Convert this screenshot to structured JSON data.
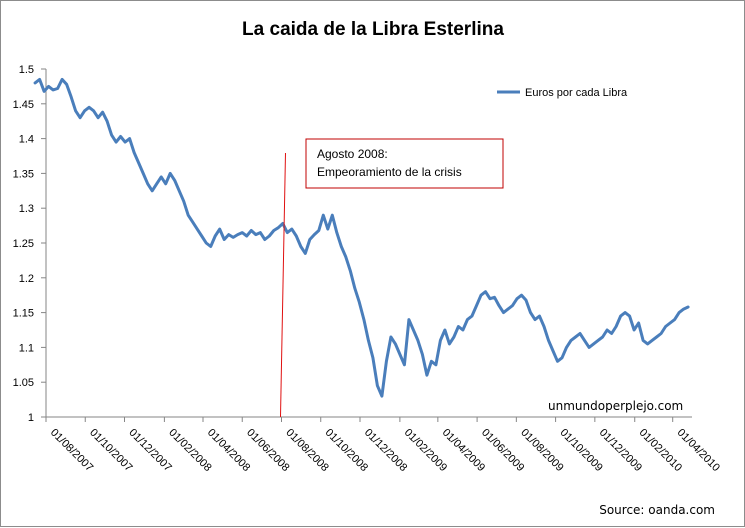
{
  "chart_data": {
    "type": "line",
    "title": "La caida de la Libra Esterlina",
    "xlabel": "",
    "ylabel": "",
    "ylim": [
      1,
      1.5
    ],
    "yticks": [
      "1",
      "1.05",
      "1.1",
      "1.15",
      "1.2",
      "1.25",
      "1.3",
      "1.35",
      "1.4",
      "1.45",
      "1.5"
    ],
    "xticks": [
      "01/08/2007",
      "01/10/2007",
      "01/12/2007",
      "01/02/2008",
      "01/04/2008",
      "01/06/2008",
      "01/08/2008",
      "01/10/2008",
      "01/12/2008",
      "01/02/2009",
      "01/04/2009",
      "01/06/2009",
      "01/08/2009",
      "01/10/2009",
      "01/12/2009",
      "01/02/2010",
      "01/04/2010"
    ],
    "x_date_start": "2007-08-01",
    "x_date_end": "2010-05-01",
    "grid": false,
    "legend_position": "top-right",
    "series": [
      {
        "name": "Euros por cada Libra",
        "color": "#4a7ebb",
        "points": [
          [
            "2007-07-15",
            1.48
          ],
          [
            "2007-07-22",
            1.485
          ],
          [
            "2007-07-29",
            1.468
          ],
          [
            "2007-08-05",
            1.475
          ],
          [
            "2007-08-12",
            1.47
          ],
          [
            "2007-08-19",
            1.472
          ],
          [
            "2007-08-26",
            1.485
          ],
          [
            "2007-09-02",
            1.478
          ],
          [
            "2007-09-09",
            1.46
          ],
          [
            "2007-09-16",
            1.44
          ],
          [
            "2007-09-23",
            1.43
          ],
          [
            "2007-09-30",
            1.44
          ],
          [
            "2007-10-07",
            1.445
          ],
          [
            "2007-10-14",
            1.44
          ],
          [
            "2007-10-21",
            1.43
          ],
          [
            "2007-10-28",
            1.438
          ],
          [
            "2007-11-04",
            1.425
          ],
          [
            "2007-11-11",
            1.405
          ],
          [
            "2007-11-18",
            1.395
          ],
          [
            "2007-11-25",
            1.403
          ],
          [
            "2007-12-02",
            1.395
          ],
          [
            "2007-12-09",
            1.4
          ],
          [
            "2007-12-16",
            1.38
          ],
          [
            "2007-12-23",
            1.365
          ],
          [
            "2007-12-30",
            1.35
          ],
          [
            "2008-01-06",
            1.335
          ],
          [
            "2008-01-13",
            1.325
          ],
          [
            "2008-01-20",
            1.335
          ],
          [
            "2008-01-27",
            1.345
          ],
          [
            "2008-02-03",
            1.335
          ],
          [
            "2008-02-10",
            1.35
          ],
          [
            "2008-02-17",
            1.34
          ],
          [
            "2008-02-24",
            1.325
          ],
          [
            "2008-03-02",
            1.31
          ],
          [
            "2008-03-09",
            1.29
          ],
          [
            "2008-03-16",
            1.28
          ],
          [
            "2008-03-23",
            1.27
          ],
          [
            "2008-03-30",
            1.26
          ],
          [
            "2008-04-06",
            1.25
          ],
          [
            "2008-04-13",
            1.245
          ],
          [
            "2008-04-20",
            1.26
          ],
          [
            "2008-04-27",
            1.27
          ],
          [
            "2008-05-04",
            1.255
          ],
          [
            "2008-05-11",
            1.262
          ],
          [
            "2008-05-18",
            1.258
          ],
          [
            "2008-05-25",
            1.262
          ],
          [
            "2008-06-01",
            1.265
          ],
          [
            "2008-06-08",
            1.26
          ],
          [
            "2008-06-15",
            1.268
          ],
          [
            "2008-06-22",
            1.262
          ],
          [
            "2008-06-29",
            1.265
          ],
          [
            "2008-07-06",
            1.255
          ],
          [
            "2008-07-13",
            1.26
          ],
          [
            "2008-07-20",
            1.268
          ],
          [
            "2008-07-27",
            1.272
          ],
          [
            "2008-08-03",
            1.278
          ],
          [
            "2008-08-10",
            1.265
          ],
          [
            "2008-08-17",
            1.27
          ],
          [
            "2008-08-24",
            1.26
          ],
          [
            "2008-08-31",
            1.245
          ],
          [
            "2008-09-07",
            1.235
          ],
          [
            "2008-09-14",
            1.255
          ],
          [
            "2008-09-21",
            1.262
          ],
          [
            "2008-09-28",
            1.268
          ],
          [
            "2008-10-05",
            1.29
          ],
          [
            "2008-10-12",
            1.27
          ],
          [
            "2008-10-19",
            1.29
          ],
          [
            "2008-10-26",
            1.265
          ],
          [
            "2008-11-02",
            1.245
          ],
          [
            "2008-11-09",
            1.23
          ],
          [
            "2008-11-16",
            1.21
          ],
          [
            "2008-11-23",
            1.185
          ],
          [
            "2008-11-30",
            1.165
          ],
          [
            "2008-12-07",
            1.14
          ],
          [
            "2008-12-14",
            1.11
          ],
          [
            "2008-12-21",
            1.085
          ],
          [
            "2008-12-28",
            1.045
          ],
          [
            "2009-01-04",
            1.03
          ],
          [
            "2009-01-11",
            1.08
          ],
          [
            "2009-01-18",
            1.115
          ],
          [
            "2009-01-25",
            1.105
          ],
          [
            "2009-02-01",
            1.09
          ],
          [
            "2009-02-08",
            1.075
          ],
          [
            "2009-02-15",
            1.14
          ],
          [
            "2009-02-22",
            1.125
          ],
          [
            "2009-03-01",
            1.11
          ],
          [
            "2009-03-08",
            1.09
          ],
          [
            "2009-03-15",
            1.06
          ],
          [
            "2009-03-22",
            1.08
          ],
          [
            "2009-03-29",
            1.075
          ],
          [
            "2009-04-05",
            1.11
          ],
          [
            "2009-04-12",
            1.125
          ],
          [
            "2009-04-19",
            1.105
          ],
          [
            "2009-04-26",
            1.115
          ],
          [
            "2009-05-03",
            1.13
          ],
          [
            "2009-05-10",
            1.125
          ],
          [
            "2009-05-17",
            1.14
          ],
          [
            "2009-05-24",
            1.145
          ],
          [
            "2009-05-31",
            1.16
          ],
          [
            "2009-06-07",
            1.175
          ],
          [
            "2009-06-14",
            1.18
          ],
          [
            "2009-06-21",
            1.17
          ],
          [
            "2009-06-28",
            1.172
          ],
          [
            "2009-07-05",
            1.16
          ],
          [
            "2009-07-12",
            1.15
          ],
          [
            "2009-07-19",
            1.155
          ],
          [
            "2009-07-26",
            1.16
          ],
          [
            "2009-08-02",
            1.17
          ],
          [
            "2009-08-09",
            1.175
          ],
          [
            "2009-08-16",
            1.168
          ],
          [
            "2009-08-23",
            1.15
          ],
          [
            "2009-08-30",
            1.14
          ],
          [
            "2009-09-06",
            1.145
          ],
          [
            "2009-09-13",
            1.13
          ],
          [
            "2009-09-20",
            1.11
          ],
          [
            "2009-09-27",
            1.095
          ],
          [
            "2009-10-04",
            1.08
          ],
          [
            "2009-10-11",
            1.085
          ],
          [
            "2009-10-18",
            1.1
          ],
          [
            "2009-10-25",
            1.11
          ],
          [
            "2009-11-01",
            1.115
          ],
          [
            "2009-11-08",
            1.12
          ],
          [
            "2009-11-15",
            1.11
          ],
          [
            "2009-11-22",
            1.1
          ],
          [
            "2009-11-29",
            1.105
          ],
          [
            "2009-12-06",
            1.11
          ],
          [
            "2009-12-13",
            1.115
          ],
          [
            "2009-12-20",
            1.125
          ],
          [
            "2009-12-27",
            1.12
          ],
          [
            "2010-01-03",
            1.13
          ],
          [
            "2010-01-10",
            1.145
          ],
          [
            "2010-01-17",
            1.15
          ],
          [
            "2010-01-24",
            1.145
          ],
          [
            "2010-01-31",
            1.125
          ],
          [
            "2010-02-07",
            1.135
          ],
          [
            "2010-02-14",
            1.11
          ],
          [
            "2010-02-21",
            1.105
          ],
          [
            "2010-02-28",
            1.11
          ],
          [
            "2010-03-07",
            1.115
          ],
          [
            "2010-03-14",
            1.12
          ],
          [
            "2010-03-21",
            1.13
          ],
          [
            "2010-03-28",
            1.135
          ],
          [
            "2010-04-04",
            1.14
          ],
          [
            "2010-04-11",
            1.15
          ],
          [
            "2010-04-18",
            1.155
          ],
          [
            "2010-04-25",
            1.158
          ]
        ]
      }
    ],
    "annotation": {
      "lines": [
        "Agosto 2008:",
        "Empeoramiento de la crisis"
      ],
      "marker_date": "2008-08-01",
      "marker_color": "#e01010",
      "box_border_color": "#c00000"
    },
    "watermark": "unmundoperplejo.com",
    "source": "Source: oanda.com"
  }
}
